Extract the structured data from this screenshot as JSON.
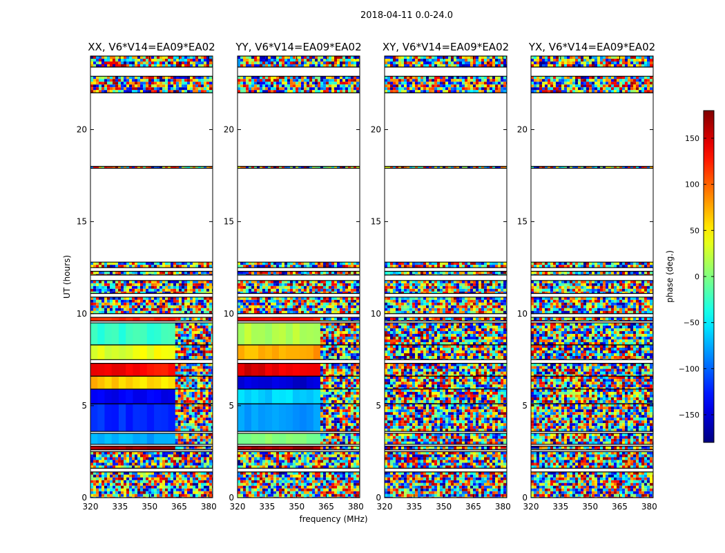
{
  "figure_title": "2018-04-11 0.0-24.0",
  "chart_data": [
    {
      "type": "heatmap",
      "title": "XX, V6*V14=EA09*EA02",
      "xlabel": "",
      "ylabel": "UT (hours)",
      "xlim": [
        320,
        382
      ],
      "ylim": [
        0,
        24
      ],
      "xticks": [
        320,
        335,
        350,
        365,
        380
      ],
      "yticks": [
        0,
        5,
        10,
        15,
        20
      ],
      "coherent_bands": [
        {
          "from": 9.6,
          "to": 9.8,
          "phase": 120,
          "grad": 0
        },
        {
          "from": 8.3,
          "to": 9.5,
          "phase": -30,
          "grad": 10
        },
        {
          "from": 7.5,
          "to": 8.3,
          "phase": 30,
          "grad": 15
        },
        {
          "from": 6.6,
          "to": 7.3,
          "phase": 150,
          "grad": -25
        },
        {
          "from": 5.9,
          "to": 6.6,
          "phase": 70,
          "grad": -20
        },
        {
          "from": 5.1,
          "to": 5.9,
          "phase": -140,
          "grad": 0
        },
        {
          "from": 3.6,
          "to": 5.1,
          "phase": -120,
          "grad": 0
        },
        {
          "from": 2.9,
          "to": 3.5,
          "phase": -75,
          "grad": 0
        },
        {
          "from": 2.6,
          "to": 2.8,
          "phase": 170,
          "grad": 0
        }
      ],
      "coherent_edge_mhz": 363
    },
    {
      "type": "heatmap",
      "title": "YY, V6*V14=EA09*EA02",
      "xlabel": "frequency (MHz)",
      "ylabel": "",
      "xlim": [
        320,
        382
      ],
      "ylim": [
        0,
        24
      ],
      "xticks": [
        320,
        335,
        350,
        365,
        380
      ],
      "yticks": [
        0,
        5,
        10,
        15,
        20
      ],
      "coherent_bands": [
        {
          "from": 9.6,
          "to": 9.8,
          "phase": 130,
          "grad": 0
        },
        {
          "from": 8.3,
          "to": 9.5,
          "phase": 20,
          "grad": -5
        },
        {
          "from": 7.5,
          "to": 8.3,
          "phase": 70,
          "grad": 10
        },
        {
          "from": 6.6,
          "to": 7.3,
          "phase": 150,
          "grad": -20
        },
        {
          "from": 5.9,
          "to": 6.6,
          "phase": -150,
          "grad": 0
        },
        {
          "from": 5.1,
          "to": 5.9,
          "phase": -60,
          "grad": 0
        },
        {
          "from": 3.6,
          "to": 5.1,
          "phase": -80,
          "grad": 0
        },
        {
          "from": 2.9,
          "to": 3.5,
          "phase": 0,
          "grad": 0
        },
        {
          "from": 2.6,
          "to": 2.8,
          "phase": 170,
          "grad": 0
        }
      ],
      "coherent_edge_mhz": 362
    },
    {
      "type": "heatmap",
      "title": "XY, V6*V14=EA09*EA02",
      "xlabel": "",
      "ylabel": "",
      "xlim": [
        320,
        382
      ],
      "ylim": [
        0,
        24
      ],
      "xticks": [
        320,
        335,
        350,
        365,
        380
      ],
      "yticks": [
        0,
        5,
        10,
        15,
        20
      ],
      "coherent_bands": [],
      "coherent_edge_mhz": 320
    },
    {
      "type": "heatmap",
      "title": "YX, V6*V14=EA09*EA02",
      "xlabel": "",
      "ylabel": "",
      "xlim": [
        320,
        382
      ],
      "ylim": [
        0,
        24
      ],
      "xticks": [
        320,
        335,
        350,
        365,
        380
      ],
      "yticks": [
        0,
        5,
        10,
        15,
        20
      ],
      "coherent_bands": [],
      "coherent_edge_mhz": 320
    }
  ],
  "data_rows": [
    {
      "from": 23.4,
      "to": 24.0
    },
    {
      "from": 22.0,
      "to": 22.9
    },
    {
      "from": 17.9,
      "to": 18.0
    },
    {
      "from": 12.5,
      "to": 12.8
    },
    {
      "from": 12.1,
      "to": 12.3
    },
    {
      "from": 11.1,
      "to": 11.8
    },
    {
      "from": 10.0,
      "to": 10.9
    },
    {
      "from": 9.6,
      "to": 9.8
    },
    {
      "from": 8.3,
      "to": 9.5
    },
    {
      "from": 7.5,
      "to": 8.3
    },
    {
      "from": 6.6,
      "to": 7.3
    },
    {
      "from": 5.9,
      "to": 6.6
    },
    {
      "from": 5.1,
      "to": 5.9
    },
    {
      "from": 3.6,
      "to": 5.1
    },
    {
      "from": 2.9,
      "to": 3.5
    },
    {
      "from": 2.6,
      "to": 2.8
    },
    {
      "from": 1.6,
      "to": 2.5
    },
    {
      "from": 0.0,
      "to": 1.4
    }
  ],
  "colorbar": {
    "label": "phase (deg.)",
    "range": [
      -180,
      180
    ],
    "ticks": [
      -150,
      -100,
      -50,
      0,
      50,
      100,
      150
    ],
    "tick_labels": [
      "−150",
      "−100",
      "−50",
      "0",
      "50",
      "100",
      "150"
    ],
    "colormap": "jet"
  }
}
